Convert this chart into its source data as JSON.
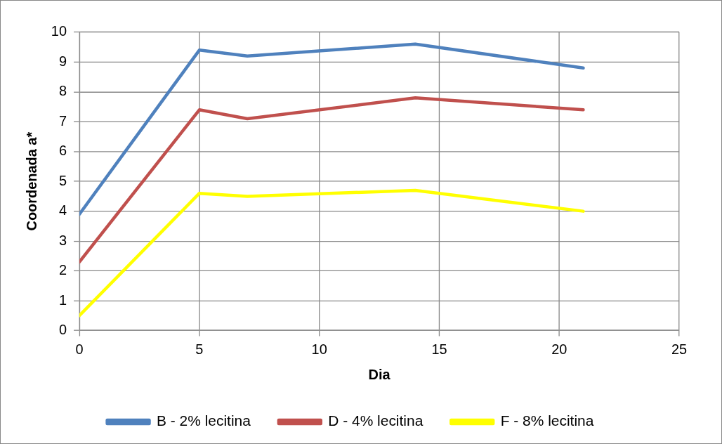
{
  "chart_data": {
    "type": "line",
    "xlabel": "Dia",
    "ylabel": "Coordenada a*",
    "xlim": [
      0,
      25
    ],
    "xticks": [
      0,
      5,
      10,
      15,
      20,
      25
    ],
    "ylim": [
      0,
      10
    ],
    "yticks": [
      0,
      1,
      2,
      3,
      4,
      5,
      6,
      7,
      8,
      9,
      10
    ],
    "grid": true,
    "legend": "bottom",
    "marker": "none",
    "line_style": "solid",
    "series": [
      {
        "name": "B - 2% lecitina",
        "color": "#4f81bd",
        "x": [
          0,
          5,
          7,
          14,
          21
        ],
        "values": [
          3.9,
          9.4,
          9.2,
          9.6,
          8.8
        ]
      },
      {
        "name": "D - 4% lecitina",
        "color": "#c0504d",
        "x": [
          0,
          5,
          7,
          14,
          21
        ],
        "values": [
          2.3,
          7.4,
          7.1,
          7.8,
          7.4
        ]
      },
      {
        "name": "F - 8% lecitina",
        "color": "#ffff00",
        "x": [
          0,
          5,
          7,
          14,
          21
        ],
        "values": [
          0.5,
          4.6,
          4.5,
          4.7,
          4.0
        ]
      }
    ]
  }
}
